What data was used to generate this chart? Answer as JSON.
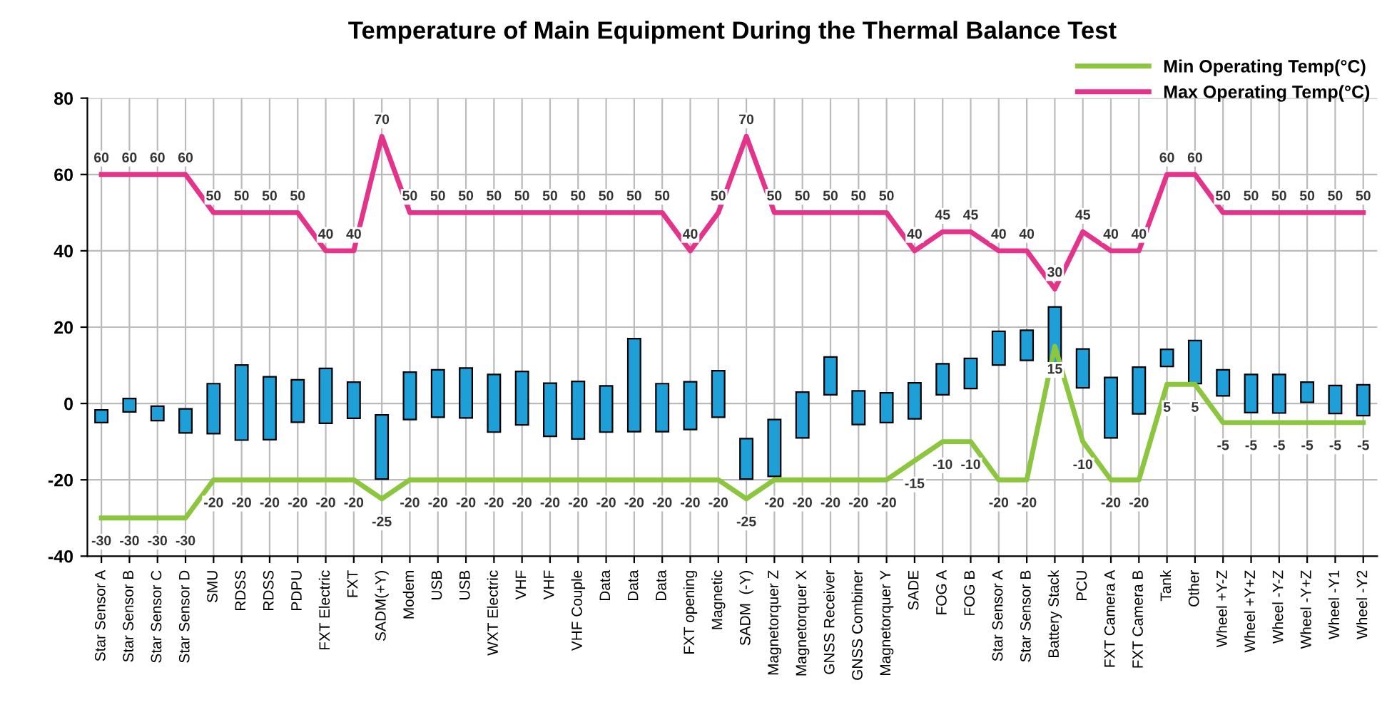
{
  "chart_data": {
    "type": "bar",
    "title": "Temperature of Main Equipment During the Thermal Balance Test",
    "categories": [
      "Star Sensor A",
      "Star Sensor B",
      "Star Sensor C",
      "Star Sensor D",
      "SMU",
      "RDSS",
      "RDSS",
      "PDPU",
      "FXT Electric",
      "FXT",
      "SADM(+Y)",
      "Modem",
      "USB",
      "USB",
      "WXT Electric",
      "VHF",
      "VHF",
      "VHF Couple",
      "Data",
      "Data",
      "Data",
      "FXT opening",
      "Magnetic",
      "SADM  (-Y)",
      "Magnetorquer Z",
      "Magnetorquer X",
      "GNSS Receiver",
      "GNSS Combiner",
      "Magnetorquer Y",
      "SADE",
      "FOG A",
      "FOG B",
      "Star Sensor A",
      "Star Sensor B",
      "Battery Stack",
      "PCU",
      "FXT Camera A",
      "FXT Camera B",
      "Tank",
      "Other",
      "Wheel +Y-Z",
      "Wheel +Y+Z",
      "Wheel -Y-Z",
      "Wheel -Y+Z",
      "Wheel -Y1",
      "Wheel -Y2"
    ],
    "series": [
      {
        "color": "#1e9fd8",
        "base": [
          -5.0,
          -2.2,
          -4.5,
          -7.7,
          -7.9,
          -9.6,
          -9.5,
          -4.9,
          -5.2,
          -3.9,
          -19.8,
          -4.2,
          -3.6,
          -3.8,
          -7.5,
          -5.6,
          -8.6,
          -9.3,
          -7.5,
          -7.4,
          -7.4,
          -6.8,
          -3.6,
          -19.8,
          -19.1,
          -9.0,
          2.3,
          -5.5,
          -5.0,
          -4.0,
          2.3,
          3.9,
          10.1,
          11.3,
          9.3,
          4.1,
          -9.0,
          -2.7,
          9.7,
          5.2,
          2.0,
          -2.4,
          -2.5,
          0.3,
          -2.6,
          -3.2
        ],
        "values": [
          3.3,
          3.5,
          3.8,
          6.3,
          13.1,
          19.7,
          16.5,
          11.1,
          14.4,
          9.5,
          16.8,
          12.4,
          12.4,
          13.1,
          15.1,
          14.0,
          13.9,
          15.1,
          12.1,
          24.4,
          12.6,
          12.5,
          12.2,
          10.6,
          14.9,
          12.0,
          9.9,
          8.8,
          7.8,
          9.4,
          8.1,
          7.9,
          8.8,
          7.9,
          16.0,
          10.2,
          15.8,
          12.2,
          4.5,
          11.3,
          6.8,
          10.0,
          10.1,
          5.3,
          7.3,
          8.1
        ]
      },
      {
        "type": "line",
        "name": "Min Operating Temp(°C)",
        "color": "#8cc63f",
        "values": [
          -30,
          -30,
          -30,
          -30,
          -20,
          -20,
          -20,
          -20,
          -20,
          -20,
          -25,
          -20,
          -20,
          -20,
          -20,
          -20,
          -20,
          -20,
          -20,
          -20,
          -20,
          -20,
          -20,
          -25,
          -20,
          -20,
          -20,
          -20,
          -20,
          -15,
          -10,
          -10,
          -20,
          -20,
          15,
          -10,
          -20,
          -20,
          5,
          5,
          -5,
          -5,
          -5,
          -5,
          -5,
          -5
        ],
        "value_labels": [
          "-30",
          "-30",
          "-30",
          "-30",
          "-20",
          "-20",
          "-20",
          "-20",
          "-20",
          "-20",
          "-25",
          "-20",
          "-20",
          "-20",
          "-20",
          "-20",
          "-20",
          "-20",
          "-20",
          "-20",
          "-20",
          "-20",
          "-20",
          "-25",
          "-20",
          "-20",
          "-20",
          "-20",
          "-20",
          "-15",
          "-10",
          "-10",
          "-20",
          "-20",
          "15",
          "-10",
          "-20",
          "-20",
          "5",
          "5",
          "-5",
          "-5",
          "-5",
          "-5",
          "-5",
          "-5"
        ]
      },
      {
        "type": "line",
        "name": "Max Operating Temp(°C)",
        "color": "#e3338b",
        "values": [
          60,
          60,
          60,
          60,
          50,
          50,
          50,
          50,
          40,
          40,
          70,
          50,
          50,
          50,
          50,
          50,
          50,
          50,
          50,
          50,
          50,
          40,
          50,
          70,
          50,
          50,
          50,
          50,
          50,
          40,
          45,
          45,
          40,
          40,
          30,
          45,
          40,
          40,
          60,
          60,
          50,
          50,
          50,
          50,
          50,
          50
        ],
        "value_labels": [
          "60",
          "60",
          "60",
          "60",
          "50",
          "50",
          "50",
          "50",
          "40",
          "40",
          "70",
          "50",
          "50",
          "50",
          "50",
          "50",
          "50",
          "50",
          "50",
          "50",
          "50",
          "40",
          "50",
          "70",
          "50",
          "50",
          "50",
          "50",
          "50",
          "40",
          "45",
          "45",
          "40",
          "40",
          "30",
          "45",
          "40",
          "40",
          "60",
          "60",
          "50",
          "50",
          "50",
          "50",
          "50",
          "50"
        ]
      }
    ],
    "ylim": [
      -40,
      80
    ],
    "yticks": [
      -40,
      -20,
      0,
      20,
      40,
      60,
      80
    ],
    "grid": true,
    "legend": "top right"
  }
}
